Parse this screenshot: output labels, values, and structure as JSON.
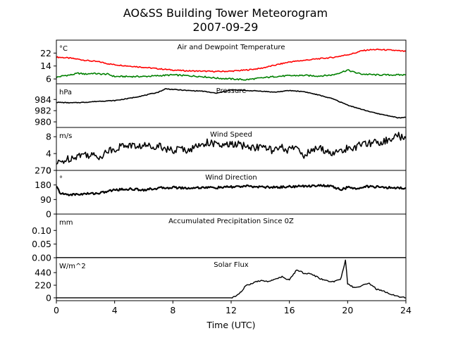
{
  "title_line1": "AO&SS Building Tower Meteorogram",
  "title_line2": "2007-09-29",
  "xlabel": "Time (UTC)",
  "chart_data": {
    "type": "line",
    "xlim": [
      0,
      24
    ],
    "xticks": [
      0,
      4,
      8,
      12,
      16,
      20,
      24
    ],
    "panels": [
      {
        "id": "temp",
        "title": "Air and Dewpoint Temperature",
        "unit": "°C",
        "ylim": [
          3,
          30
        ],
        "yticks": [
          6,
          14,
          22
        ],
        "series": [
          {
            "color": "#ff0000",
            "x": [
              0,
              0.5,
              1,
              1.5,
              2,
              2.5,
              3,
              3.5,
              4,
              5,
              6,
              7,
              8,
              9,
              10,
              11,
              12,
              13,
              14,
              15,
              16,
              17,
              18,
              19,
              20,
              20.5,
              21,
              21.5,
              22,
              23,
              24
            ],
            "y": [
              19.5,
              19.2,
              18.8,
              18.2,
              17.5,
              17,
              16.5,
              15.5,
              14.8,
              14,
              13.2,
              12.3,
              11.5,
              11,
              10.8,
              10.6,
              10.8,
              11.5,
              12.5,
              14.5,
              16.5,
              17.5,
              18.5,
              19.3,
              21,
              22,
              23.5,
              24,
              24.2,
              23.8,
              23
            ]
          },
          {
            "color": "#008000",
            "x": [
              0,
              0.5,
              1,
              1.5,
              2,
              2.5,
              3,
              3.5,
              4,
              5,
              6,
              7,
              8,
              9,
              10,
              11,
              12,
              13,
              14,
              15,
              16,
              17,
              18,
              19,
              19.5,
              20,
              20.5,
              21,
              22,
              23,
              24
            ],
            "y": [
              7,
              8,
              8.5,
              9.5,
              9,
              9.5,
              9,
              9,
              7.5,
              7.5,
              7.5,
              8,
              8.5,
              8,
              7.5,
              6.5,
              6,
              5.5,
              6.5,
              7.5,
              8,
              8.2,
              7.8,
              8.5,
              10,
              11.5,
              10,
              9,
              8.5,
              8.5,
              8.5
            ]
          }
        ]
      },
      {
        "id": "pres",
        "title": "Pressure",
        "unit": "hPa",
        "ylim": [
          979,
          986.8
        ],
        "yticks": [
          980,
          982,
          984
        ],
        "series": [
          {
            "color": "#000000",
            "x": [
              0,
              1,
              2,
              3,
              4,
              5,
              6,
              7,
              7.5,
              8,
              9,
              10,
              11,
              12,
              13,
              14,
              15,
              16,
              17,
              18,
              19,
              20,
              21,
              22,
              23,
              23.5,
              24
            ],
            "y": [
              983.5,
              983.4,
              983.5,
              983.7,
              983.8,
              984.2,
              984.7,
              985.3,
              985.9,
              985.8,
              985.6,
              985.5,
              985.1,
              985.7,
              985.6,
              985.5,
              985.3,
              985.6,
              985.4,
              984.8,
              984.1,
              983.0,
              982.2,
              981.5,
              981.0,
              980.7,
              980.8
            ]
          }
        ]
      },
      {
        "id": "wspd",
        "title": "Wind Speed",
        "unit": "m/s",
        "ylim": [
          0,
          10.2
        ],
        "yticks": [
          0,
          4,
          8
        ],
        "series": [
          {
            "color": "#000000",
            "x": [
              0,
              0.5,
              1,
              1.5,
              2,
              2.5,
              3,
              3.5,
              4,
              4.5,
              5,
              5.5,
              6,
              6.5,
              7,
              7.5,
              8,
              8.5,
              9,
              9.5,
              10,
              10.5,
              11,
              11.5,
              12,
              12.5,
              13,
              13.5,
              14,
              14.5,
              15,
              15.5,
              16,
              16.5,
              17,
              17.5,
              18,
              18.5,
              19,
              19.5,
              20,
              20.5,
              21,
              21.5,
              22,
              22.5,
              23,
              23.5,
              24
            ],
            "y": [
              1.5,
              2.3,
              3,
              3.6,
              3.9,
              3.5,
              3.3,
              4.6,
              5.1,
              5.8,
              6.1,
              5.6,
              5.9,
              5.7,
              6,
              5.3,
              4.5,
              5.2,
              4.9,
              5.4,
              6.4,
              6.7,
              6,
              5.8,
              6.2,
              6.1,
              5.7,
              5.4,
              5.6,
              5.1,
              4.7,
              5.3,
              4.8,
              5.6,
              3.6,
              4.6,
              5.2,
              4.8,
              3.9,
              4.6,
              5.2,
              5.6,
              6,
              6.5,
              6.7,
              6.9,
              7.6,
              8.2,
              7.6
            ]
          }
        ]
      },
      {
        "id": "wdir",
        "title": "Wind Direction",
        "unit": "°",
        "ylim": [
          0,
          270
        ],
        "yticks": [
          0,
          90,
          180,
          270
        ],
        "series": [
          {
            "color": "#000000",
            "x": [
              0,
              0.3,
              1,
              2,
              3,
              4,
              5,
              6,
              7,
              8,
              9,
              10,
              11,
              12,
              13,
              14,
              15,
              16,
              17,
              18,
              19,
              19.5,
              20,
              20.5,
              21,
              22,
              23,
              24
            ],
            "y": [
              170,
              125,
              120,
              125,
              130,
              150,
              155,
              150,
              160,
              165,
              160,
              165,
              163,
              168,
              172,
              168,
              165,
              170,
              172,
              178,
              170,
              150,
              165,
              155,
              170,
              168,
              162,
              162
            ]
          }
        ]
      },
      {
        "id": "precip",
        "title": "Accumulated Precipitation Since 0Z",
        "unit": "mm",
        "ylim": [
          0,
          0.16
        ],
        "yticks": [
          0.0,
          0.05,
          0.1
        ],
        "ytick_labels": [
          "0.00",
          "0.05",
          "0.10"
        ],
        "series": [
          {
            "color": "#000000",
            "x": [
              0,
              24
            ],
            "y": [
              0,
              0
            ]
          }
        ]
      },
      {
        "id": "solar",
        "title": "Solar Flux",
        "unit": "W/m^2",
        "ylim": [
          -50,
          700
        ],
        "yticks": [
          0,
          220,
          440
        ],
        "series": [
          {
            "color": "#000000",
            "x": [
              0,
              4,
              8,
              11,
              12,
              12.3,
              12.7,
              13,
              13.5,
              14,
              14.5,
              15,
              15.5,
              16,
              16.5,
              17,
              17.5,
              18,
              18.5,
              19,
              19.5,
              19.7,
              19.85,
              20,
              20.5,
              21,
              21.5,
              22,
              22.5,
              23,
              23.5,
              24
            ],
            "y": [
              0,
              0,
              0,
              0,
              0,
              25,
              110,
              210,
              260,
              300,
              280,
              330,
              370,
              310,
              490,
              430,
              420,
              350,
              300,
              280,
              320,
              490,
              660,
              250,
              170,
              220,
              250,
              150,
              110,
              60,
              20,
              0
            ]
          }
        ]
      }
    ]
  }
}
